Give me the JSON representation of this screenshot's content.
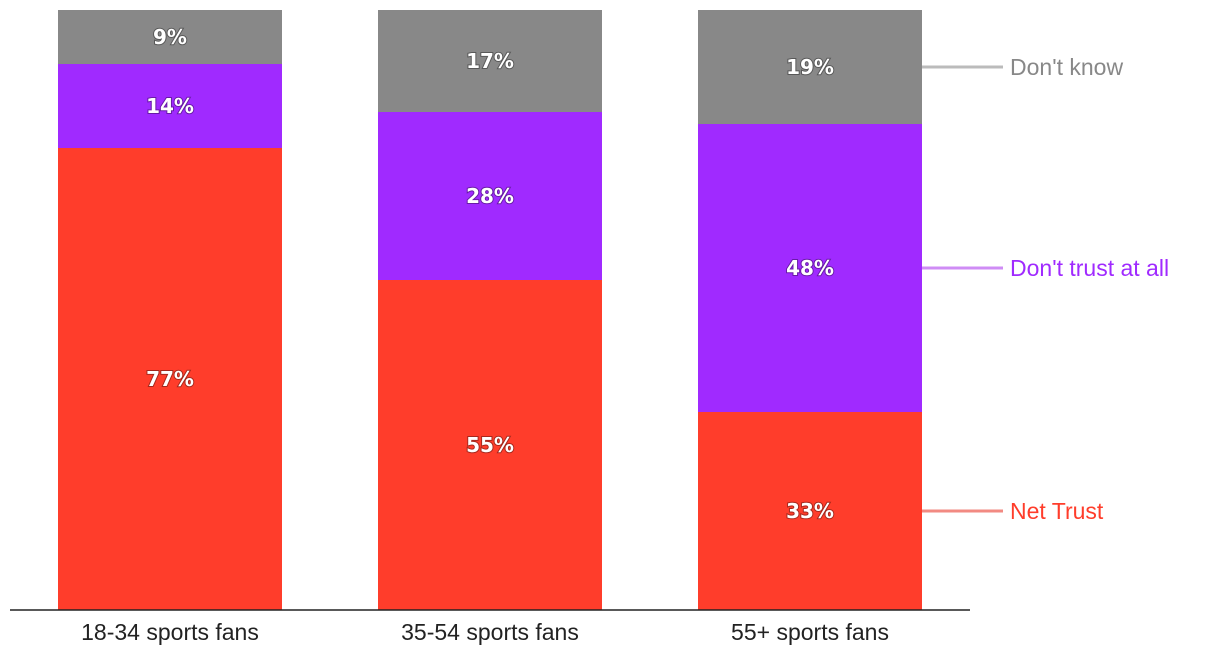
{
  "chart_data": {
    "type": "bar",
    "stacked": true,
    "orientation": "vertical",
    "categories": [
      "18-34 sports fans",
      "35-54 sports fans",
      "55+ sports fans"
    ],
    "series": [
      {
        "name": "Net Trust",
        "values": [
          77,
          55,
          33
        ],
        "labels": [
          "77%",
          "55%",
          "33%"
        ],
        "color": "#ff3d2b",
        "legend_line_color": "#f28a82"
      },
      {
        "name": "Don't trust at all",
        "values": [
          14,
          28,
          48
        ],
        "labels": [
          "14%",
          "28%",
          "48%"
        ],
        "color": "#a02aff",
        "legend_line_color": "#cf8cf5"
      },
      {
        "name": "Don't know",
        "values": [
          9,
          17,
          19
        ],
        "labels": [
          "9%",
          "17%",
          "19%"
        ],
        "color": "#888888",
        "legend_line_color": "#bbbbbb"
      }
    ],
    "legend_placement": "right",
    "grid": false,
    "axis_line_color": "#222222",
    "title": "",
    "xlabel": "",
    "ylabel": ""
  }
}
